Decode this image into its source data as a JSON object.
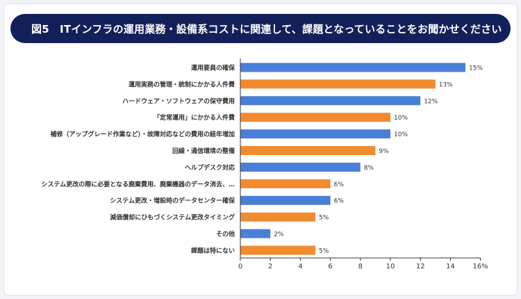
{
  "figure": {
    "title": "図5　ITインフラの運用業務・設備系コストに関連して、課題となっていることをお聞かせください"
  },
  "colors": {
    "blue": "#4a7fd8",
    "orange": "#f28a30",
    "axis": "#333333",
    "title_bg": "#14205a"
  },
  "chart_data": {
    "type": "bar",
    "orientation": "horizontal",
    "title": "図5　ITインフラの運用業務・設備系コストに関連して、課題となっていることをお聞かせください",
    "xlabel": "",
    "ylabel": "",
    "xlim": [
      0,
      16
    ],
    "x_ticks": [
      "0",
      "2",
      "4",
      "6",
      "8",
      "10",
      "12",
      "14",
      "16%"
    ],
    "grid": false,
    "categories": [
      "運用要員の確保",
      "運用実務の管理・統制にかかる人件費",
      "ハードウェア・ソフトウェアの保守費用",
      "「定常運用」にかかる人件費",
      "補修（アップグレード作業など）・故障対応などの費用の経年増加",
      "回線・通信環境の整備",
      "ヘルプデスク対応",
      "システム更改の際に必要となる廃棄費用、廃棄機器のデータ消去、…",
      "システム更改・増設時のデータセンター確保",
      "減価償却にひもづくシステム更改タイミング",
      "その他",
      "課題は特にない"
    ],
    "values": [
      15,
      13,
      12,
      10,
      10,
      9,
      8,
      6,
      6,
      5,
      2,
      5
    ],
    "value_labels": [
      "15%",
      "13%",
      "12%",
      "10%",
      "10%",
      "9%",
      "8%",
      "6%",
      "6%",
      "5%",
      "2%",
      "5%"
    ],
    "bar_colors": [
      "blue",
      "orange",
      "blue",
      "orange",
      "blue",
      "orange",
      "blue",
      "orange",
      "blue",
      "orange",
      "blue",
      "orange"
    ]
  }
}
